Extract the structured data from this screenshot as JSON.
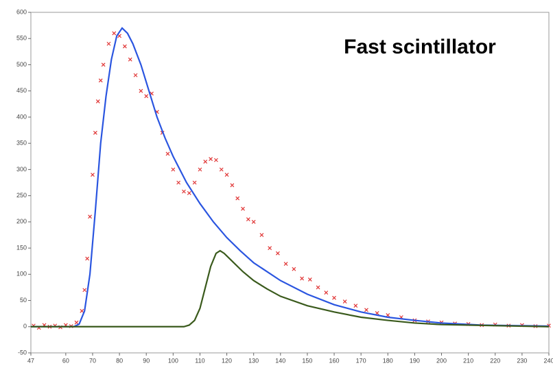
{
  "chart_data": {
    "type": "line",
    "annotation": "Fast scintillator",
    "xlim": [
      47,
      240
    ],
    "xticks": [
      47,
      60,
      70,
      80,
      90,
      100,
      110,
      120,
      130,
      140,
      150,
      160,
      170,
      180,
      190,
      200,
      210,
      220,
      230,
      240
    ],
    "ylim": [
      -50,
      600
    ],
    "yticks": [
      -50,
      0,
      50,
      100,
      150,
      200,
      250,
      300,
      350,
      400,
      450,
      500,
      550,
      600
    ],
    "series": [
      {
        "color": "#e03535",
        "style": "markers",
        "x": [
          48,
          50,
          52,
          54,
          56,
          58,
          60,
          62,
          64,
          66,
          67,
          68,
          69,
          70,
          71,
          72,
          73,
          74,
          76,
          78,
          80,
          82,
          84,
          86,
          88,
          90,
          92,
          94,
          96,
          98,
          100,
          102,
          104,
          106,
          108,
          110,
          112,
          114,
          116,
          118,
          120,
          122,
          124,
          126,
          128,
          130,
          133,
          136,
          139,
          142,
          145,
          148,
          151,
          154,
          157,
          160,
          164,
          168,
          172,
          176,
          180,
          185,
          190,
          195,
          200,
          205,
          210,
          215,
          220,
          225,
          230,
          235,
          240
        ],
        "values": [
          2,
          -2,
          3,
          0,
          2,
          -1,
          3,
          1,
          8,
          30,
          70,
          130,
          210,
          290,
          370,
          430,
          470,
          500,
          540,
          560,
          555,
          535,
          510,
          480,
          450,
          440,
          445,
          410,
          370,
          330,
          300,
          275,
          258,
          255,
          275,
          300,
          315,
          320,
          318,
          300,
          290,
          270,
          245,
          225,
          205,
          200,
          175,
          150,
          140,
          120,
          110,
          92,
          90,
          75,
          65,
          55,
          48,
          40,
          32,
          26,
          22,
          18,
          12,
          10,
          8,
          6,
          5,
          3,
          4,
          2,
          3,
          1,
          2
        ]
      },
      {
        "color": "#2a55e0",
        "style": "line",
        "x": [
          47,
          55,
          63,
          65,
          67,
          69,
          71,
          73,
          75,
          77,
          79,
          81,
          83,
          85,
          88,
          91,
          94,
          97,
          100,
          105,
          110,
          115,
          120,
          125,
          130,
          140,
          150,
          160,
          170,
          180,
          190,
          200,
          215,
          240
        ],
        "values": [
          0,
          0,
          0,
          5,
          30,
          100,
          220,
          350,
          440,
          510,
          555,
          570,
          560,
          540,
          500,
          450,
          400,
          360,
          325,
          275,
          235,
          200,
          170,
          145,
          122,
          88,
          62,
          42,
          28,
          18,
          12,
          7,
          3,
          1
        ]
      },
      {
        "color": "#3a5a1c",
        "style": "line",
        "x": [
          47,
          80,
          104,
          106,
          108,
          110,
          112,
          114,
          116,
          117.5,
          119,
          122,
          126,
          130,
          135,
          140,
          150,
          160,
          170,
          180,
          190,
          200,
          220,
          240
        ],
        "values": [
          0,
          0,
          0,
          3,
          12,
          35,
          75,
          115,
          140,
          145,
          140,
          125,
          105,
          88,
          72,
          58,
          40,
          28,
          18,
          12,
          7,
          4,
          2,
          0
        ]
      }
    ]
  }
}
